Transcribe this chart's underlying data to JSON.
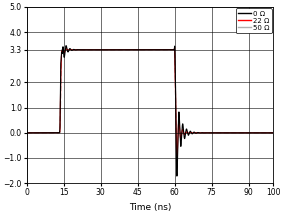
{
  "xlabel": "Time (ns)",
  "xlim": [
    0,
    100
  ],
  "ylim": [
    -2,
    5
  ],
  "yticks": [
    -2,
    -1,
    0,
    1,
    2,
    3.3,
    4,
    5
  ],
  "xticks": [
    0,
    15,
    30,
    45,
    60,
    75,
    90,
    100
  ],
  "legend_labels": [
    "0 Ω",
    "22 Ω",
    "50 Ω"
  ],
  "line_colors": [
    "black",
    "red",
    "#b0b0b0"
  ],
  "background_color": "#ffffff",
  "grid_color": "#000000",
  "t_rise": 13.5,
  "t_fall": 60.0,
  "v_high": 3.3,
  "v_low": 0.0,
  "rise_dur": 0.6,
  "fall_dur": 0.6
}
